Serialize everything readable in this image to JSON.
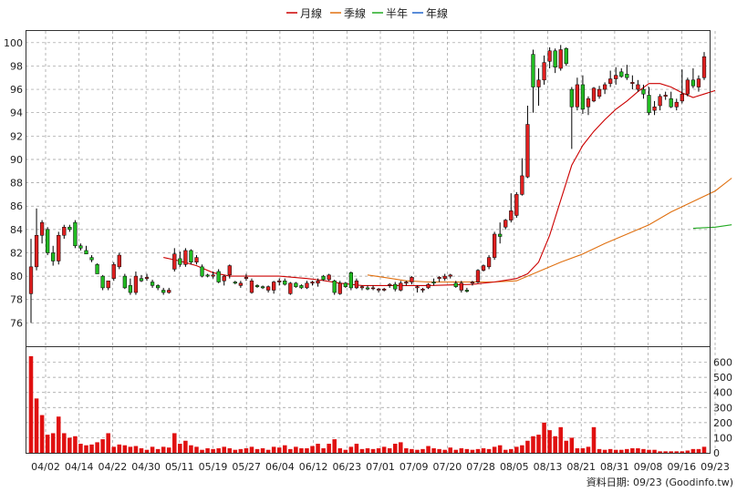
{
  "legend": [
    {
      "name": "月線",
      "color": "#cc0000"
    },
    {
      "name": "季線",
      "color": "#e07010"
    },
    {
      "name": "半年",
      "color": "#22aa22"
    },
    {
      "name": "年線",
      "color": "#2266cc"
    }
  ],
  "footer": "資料日期: 09/23  (Goodinfo.tw)",
  "colors": {
    "up": "#e02020",
    "down": "#22bb22",
    "grid": "#999999"
  },
  "chart_data": {
    "type": "candlestick",
    "price_ylim": [
      74,
      101
    ],
    "price_ticks": [
      76,
      78,
      80,
      82,
      84,
      86,
      88,
      90,
      92,
      94,
      96,
      98,
      100
    ],
    "volume_ylim": [
      0,
      700
    ],
    "volume_ticks": [
      0,
      100,
      200,
      300,
      400,
      500,
      600
    ],
    "x_labels": [
      "04/02",
      "04/14",
      "04/22",
      "04/30",
      "05/11",
      "05/19",
      "05/27",
      "06/04",
      "06/12",
      "06/23",
      "07/01",
      "07/09",
      "07/20",
      "07/28",
      "08/05",
      "08/13",
      "08/21",
      "08/31",
      "09/08",
      "09/16",
      "09/23"
    ],
    "ohlc": [
      [
        78.5,
        83.2,
        76,
        80.8
      ],
      [
        80.8,
        85.8,
        80.5,
        83.5
      ],
      [
        83.5,
        84.8,
        82.8,
        84.6
      ],
      [
        84.0,
        84.2,
        81.8,
        82.0
      ],
      [
        82.0,
        82.6,
        80.9,
        81.3
      ],
      [
        81.3,
        83.8,
        81.0,
        83.5
      ],
      [
        83.5,
        84.4,
        83.2,
        84.2
      ],
      [
        84.2,
        84.4,
        83.8,
        84.0
      ],
      [
        84.6,
        84.8,
        82.4,
        82.6
      ],
      [
        82.6,
        82.8,
        82.2,
        82.4
      ],
      [
        82.2,
        82.6,
        81.9,
        81.9
      ],
      [
        81.6,
        81.8,
        81.2,
        81.4
      ],
      [
        81.0,
        81.1,
        80.2,
        80.2
      ],
      [
        80.0,
        80.1,
        78.8,
        79.0
      ],
      [
        79.0,
        79.6,
        78.8,
        79.6
      ],
      [
        79.8,
        81.2,
        79.6,
        81.0
      ],
      [
        80.8,
        82.0,
        80.6,
        81.8
      ],
      [
        80.0,
        80.2,
        78.9,
        79.0
      ],
      [
        79.2,
        79.8,
        78.4,
        78.6
      ],
      [
        78.6,
        80.4,
        78.4,
        80.0
      ],
      [
        79.8,
        80.1,
        79.5,
        79.6
      ],
      [
        79.8,
        80.2,
        79.6,
        79.9
      ],
      [
        79.5,
        79.7,
        79.0,
        79.2
      ],
      [
        79.2,
        79.3,
        78.8,
        79.0
      ],
      [
        78.8,
        79.0,
        78.4,
        78.6
      ],
      [
        78.6,
        79.0,
        78.5,
        78.8
      ],
      [
        80.6,
        82.4,
        80.4,
        81.9
      ],
      [
        81.5,
        82.1,
        80.8,
        81.0
      ],
      [
        81.0,
        82.4,
        80.8,
        82.2
      ],
      [
        82.2,
        82.3,
        81.0,
        81.2
      ],
      [
        81.2,
        81.8,
        81.0,
        81.6
      ],
      [
        80.8,
        81.0,
        79.9,
        80.0
      ],
      [
        80.1,
        80.2,
        79.9,
        80.0
      ],
      [
        80.0,
        80.4,
        79.8,
        80.1
      ],
      [
        80.4,
        80.6,
        79.4,
        79.5
      ],
      [
        79.6,
        80.1,
        79.2,
        80.0
      ],
      [
        80.1,
        81.0,
        79.8,
        80.9
      ],
      [
        79.5,
        79.6,
        79.3,
        79.4
      ],
      [
        79.2,
        79.6,
        79.0,
        79.4
      ],
      [
        79.8,
        80.2,
        79.6,
        79.9
      ],
      [
        78.6,
        79.8,
        78.5,
        79.6
      ],
      [
        79.2,
        79.3,
        79.0,
        79.1
      ],
      [
        79.1,
        79.2,
        78.9,
        79.0
      ],
      [
        78.8,
        79.2,
        78.6,
        79.1
      ],
      [
        78.8,
        79.6,
        78.5,
        79.5
      ],
      [
        79.5,
        79.8,
        79.2,
        79.6
      ],
      [
        79.6,
        79.8,
        79.2,
        79.3
      ],
      [
        78.5,
        79.5,
        78.4,
        79.4
      ],
      [
        79.4,
        79.5,
        79.0,
        79.1
      ],
      [
        79.2,
        79.3,
        78.9,
        79.0
      ],
      [
        79.0,
        79.6,
        78.9,
        79.4
      ],
      [
        79.4,
        79.6,
        79.2,
        79.5
      ],
      [
        79.4,
        79.8,
        79.1,
        79.6
      ],
      [
        80.0,
        80.1,
        79.6,
        79.7
      ],
      [
        79.7,
        80.2,
        79.6,
        80.1
      ],
      [
        79.6,
        79.7,
        78.4,
        78.6
      ],
      [
        78.5,
        79.6,
        78.4,
        79.4
      ],
      [
        79.4,
        79.5,
        79.0,
        79.1
      ],
      [
        80.3,
        80.4,
        78.8,
        79.0
      ],
      [
        79.0,
        79.8,
        78.9,
        79.6
      ],
      [
        79.0,
        79.2,
        78.8,
        79.1
      ],
      [
        79.0,
        79.2,
        78.8,
        78.9
      ],
      [
        79.0,
        79.2,
        78.8,
        79.0
      ],
      [
        78.8,
        79.0,
        78.6,
        78.9
      ],
      [
        78.8,
        79.0,
        78.7,
        78.9
      ],
      [
        79.2,
        79.4,
        79.0,
        79.3
      ],
      [
        79.3,
        79.5,
        78.7,
        78.9
      ],
      [
        78.8,
        79.6,
        78.7,
        79.4
      ],
      [
        79.4,
        79.6,
        79.2,
        79.5
      ],
      [
        79.5,
        80.0,
        79.3,
        79.9
      ],
      [
        79.0,
        79.2,
        78.6,
        79.1
      ],
      [
        78.8,
        79.0,
        78.6,
        78.9
      ],
      [
        79.0,
        79.4,
        78.9,
        79.3
      ],
      [
        79.5,
        79.8,
        79.2,
        79.4
      ],
      [
        79.8,
        80.0,
        79.5,
        79.9
      ],
      [
        79.8,
        80.2,
        79.6,
        80.0
      ],
      [
        80.0,
        80.2,
        79.8,
        80.1
      ],
      [
        79.4,
        79.6,
        79.0,
        79.1
      ],
      [
        78.8,
        79.6,
        78.6,
        79.4
      ],
      [
        78.8,
        79.0,
        78.6,
        78.7
      ],
      [
        79.4,
        79.6,
        79.2,
        79.5
      ],
      [
        79.5,
        80.6,
        79.4,
        80.5
      ],
      [
        80.5,
        81.0,
        80.4,
        80.9
      ],
      [
        80.8,
        81.8,
        80.6,
        81.6
      ],
      [
        81.6,
        83.8,
        81.4,
        83.6
      ],
      [
        83.6,
        84.6,
        82.8,
        83.4
      ],
      [
        84.2,
        84.9,
        84.0,
        84.8
      ],
      [
        84.8,
        87.1,
        84.6,
        85.6
      ],
      [
        85.2,
        87.2,
        85.0,
        87.0
      ],
      [
        87.0,
        90.1,
        86.9,
        88.6
      ],
      [
        88.5,
        94.6,
        88.4,
        93.0
      ],
      [
        99.0,
        99.4,
        94.0,
        96.2
      ],
      [
        96.2,
        97.8,
        94.6,
        96.8
      ],
      [
        96.8,
        98.9,
        96.4,
        98.3
      ],
      [
        98.4,
        99.6,
        97.8,
        99.3
      ],
      [
        99.3,
        99.5,
        97.4,
        97.9
      ],
      [
        97.8,
        99.8,
        97.6,
        99.4
      ],
      [
        99.5,
        99.6,
        98.0,
        98.2
      ],
      [
        96.0,
        96.2,
        90.9,
        94.5
      ],
      [
        94.5,
        97.0,
        94.2,
        96.4
      ],
      [
        96.4,
        97.2,
        93.9,
        94.3
      ],
      [
        94.5,
        95.4,
        93.8,
        95.2
      ],
      [
        95.0,
        96.2,
        94.9,
        96.1
      ],
      [
        95.4,
        96.3,
        95.2,
        96.0
      ],
      [
        96.0,
        96.6,
        95.6,
        96.4
      ],
      [
        96.5,
        97.6,
        96.2,
        96.9
      ],
      [
        96.9,
        97.9,
        96.4,
        97.2
      ],
      [
        97.5,
        97.8,
        97.0,
        97.1
      ],
      [
        97.3,
        98.1,
        96.8,
        97.0
      ],
      [
        96.5,
        97.2,
        96.0,
        96.6
      ],
      [
        96.0,
        96.8,
        95.8,
        96.4
      ],
      [
        96.0,
        96.4,
        95.2,
        95.6
      ],
      [
        95.5,
        96.2,
        93.8,
        94.0
      ],
      [
        94.2,
        95.0,
        93.8,
        94.5
      ],
      [
        94.6,
        95.6,
        94.2,
        95.4
      ],
      [
        95.4,
        95.8,
        95.1,
        95.5
      ],
      [
        95.2,
        95.8,
        94.4,
        94.5
      ],
      [
        94.5,
        95.2,
        94.2,
        94.9
      ],
      [
        95.0,
        97.7,
        94.8,
        95.6
      ],
      [
        95.6,
        97.0,
        95.4,
        96.8
      ],
      [
        96.8,
        97.8,
        96.1,
        96.3
      ],
      [
        96.2,
        97.2,
        95.8,
        96.9
      ],
      [
        97.0,
        99.2,
        96.8,
        98.8
      ]
    ],
    "volume": [
      640,
      360,
      250,
      120,
      130,
      240,
      130,
      100,
      110,
      60,
      50,
      55,
      70,
      90,
      130,
      40,
      55,
      50,
      40,
      45,
      30,
      20,
      40,
      25,
      40,
      35,
      130,
      60,
      80,
      50,
      40,
      20,
      30,
      25,
      30,
      40,
      30,
      20,
      25,
      30,
      40,
      25,
      30,
      20,
      40,
      35,
      50,
      25,
      40,
      30,
      30,
      45,
      60,
      30,
      60,
      90,
      30,
      20,
      40,
      60,
      25,
      30,
      25,
      30,
      40,
      30,
      60,
      70,
      30,
      25,
      20,
      25,
      45,
      30,
      25,
      20,
      35,
      20,
      30,
      25,
      20,
      25,
      30,
      25,
      40,
      50,
      20,
      25,
      40,
      50,
      80,
      110,
      120,
      200,
      150,
      110,
      170,
      80,
      100,
      30,
      30,
      40,
      170,
      25,
      20,
      25,
      20,
      20,
      25,
      30,
      30,
      25,
      20,
      20,
      10,
      10,
      10,
      10,
      10,
      15,
      25,
      25,
      40
    ],
    "ma_month": [
      [
        24,
        81.6
      ],
      [
        27,
        81.3
      ],
      [
        30,
        80.9
      ],
      [
        33,
        80.3
      ],
      [
        36,
        80.0
      ],
      [
        39,
        80.0
      ],
      [
        45,
        80.0
      ],
      [
        50,
        79.8
      ],
      [
        52,
        79.7
      ],
      [
        56,
        79.4
      ],
      [
        60,
        79.2
      ],
      [
        66,
        79.2
      ],
      [
        72,
        79.2
      ],
      [
        80,
        79.3
      ],
      [
        84,
        79.5
      ],
      [
        88,
        79.8
      ],
      [
        90,
        80.2
      ],
      [
        92,
        81.2
      ],
      [
        94,
        83.5
      ],
      [
        96,
        86.5
      ],
      [
        98,
        89.5
      ],
      [
        100,
        91.2
      ],
      [
        102,
        92.4
      ],
      [
        104,
        93.4
      ],
      [
        106,
        94.3
      ],
      [
        108,
        95.0
      ],
      [
        110,
        95.8
      ],
      [
        112,
        96.5
      ],
      [
        114,
        96.5
      ],
      [
        116,
        96.2
      ],
      [
        118,
        95.7
      ],
      [
        120,
        95.3
      ],
      [
        122,
        95.6
      ],
      [
        124,
        95.9
      ]
    ],
    "ma_quarter": [
      [
        61,
        80.1
      ],
      [
        64,
        79.9
      ],
      [
        68,
        79.6
      ],
      [
        72,
        79.5
      ],
      [
        76,
        79.5
      ],
      [
        80,
        79.5
      ],
      [
        84,
        79.5
      ],
      [
        88,
        79.6
      ],
      [
        92,
        80.4
      ],
      [
        96,
        81.2
      ],
      [
        100,
        81.9
      ],
      [
        104,
        82.8
      ],
      [
        108,
        83.6
      ],
      [
        112,
        84.4
      ],
      [
        116,
        85.5
      ],
      [
        120,
        86.4
      ],
      [
        124,
        87.3
      ],
      [
        127,
        88.4
      ]
    ],
    "ma_half": [
      [
        120,
        84.1
      ],
      [
        124,
        84.2
      ],
      [
        127,
        84.4
      ]
    ]
  }
}
